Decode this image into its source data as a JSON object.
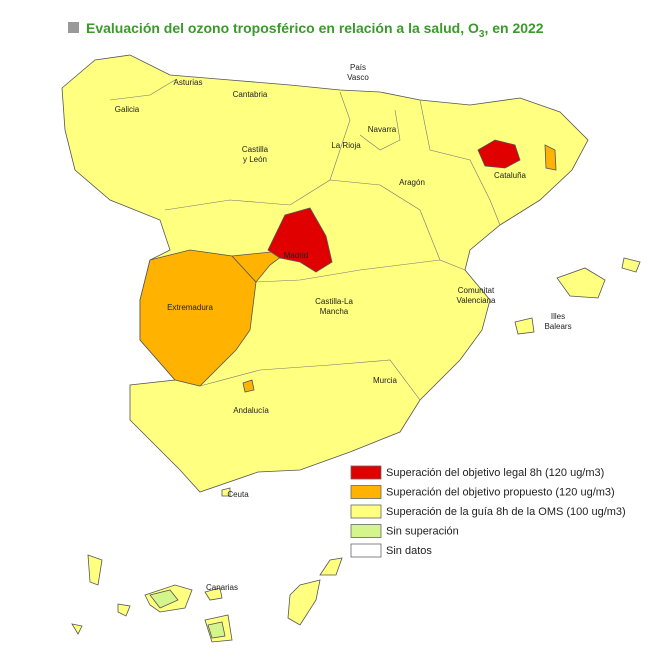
{
  "title": {
    "main": "Evaluación del ozono troposférico en relación a la salud, O",
    "subscript": "3",
    "end": ", en 2022"
  },
  "regions": [
    {
      "lines": [
        "Galicia"
      ]
    },
    {
      "lines": [
        "Asturias"
      ]
    },
    {
      "lines": [
        "Cantabria"
      ]
    },
    {
      "lines": [
        "País",
        "Vasco"
      ]
    },
    {
      "lines": [
        "Navarra"
      ]
    },
    {
      "lines": [
        "La Rioja"
      ]
    },
    {
      "lines": [
        "Castilla",
        "y León"
      ]
    },
    {
      "lines": [
        "Aragón"
      ]
    },
    {
      "lines": [
        "Cataluña"
      ]
    },
    {
      "lines": [
        "Madrid"
      ]
    },
    {
      "lines": [
        "Extremadura"
      ]
    },
    {
      "lines": [
        "Castilla-La",
        "Mancha"
      ]
    },
    {
      "lines": [
        "Comunitat",
        "Valenciana"
      ]
    },
    {
      "lines": [
        "Illes",
        "Balears"
      ]
    },
    {
      "lines": [
        "Murcia"
      ]
    },
    {
      "lines": [
        "Andalucía"
      ]
    },
    {
      "lines": [
        "Ceuta"
      ]
    },
    {
      "lines": [
        "Canarias"
      ]
    }
  ],
  "legend": [
    {
      "label": "Superación del objetivo legal 8h (120 ug/m3)",
      "color": "#e00000"
    },
    {
      "label": "Superación del objetivo propuesto (120 ug/m3)",
      "color": "#ffb300"
    },
    {
      "label": "Superación de la guía 8h de la OMS (100 ug/m3)",
      "color": "#ffff80"
    },
    {
      "label": "Sin superación",
      "color": "#d4f58c"
    },
    {
      "label": "Sin datos",
      "color": "#ffffff"
    }
  ]
}
